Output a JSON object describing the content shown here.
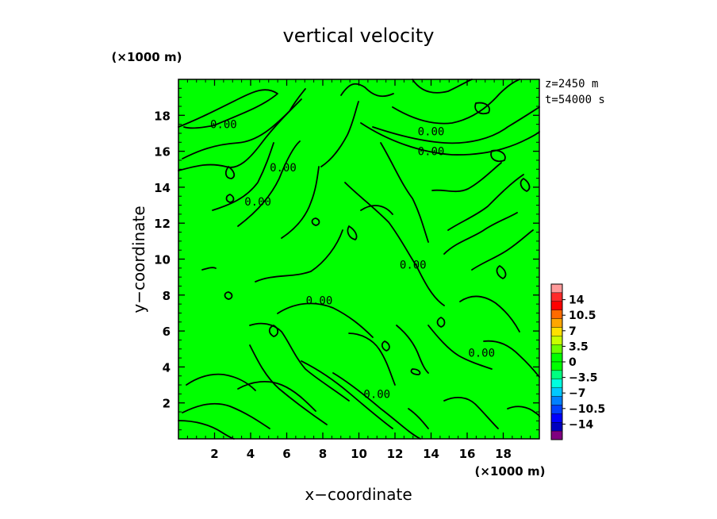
{
  "chart_data": {
    "type": "heatmap",
    "title": "vertical velocity",
    "xlabel": "x−coordinate",
    "ylabel": "y−coordinate",
    "x_unit": "(×1000 m)",
    "y_unit": "(×1000 m)",
    "xlim": [
      0,
      20
    ],
    "ylim": [
      0,
      20
    ],
    "x_ticks": [
      2,
      4,
      6,
      8,
      10,
      12,
      14,
      16,
      18
    ],
    "y_ticks": [
      2,
      4,
      6,
      8,
      10,
      12,
      14,
      16,
      18
    ],
    "x_tick_labels": [
      "2",
      "4",
      "6",
      "8",
      "10",
      "12",
      "14",
      "16",
      "18"
    ],
    "y_tick_labels": [
      "2",
      "4",
      "6",
      "8",
      "10",
      "12",
      "14",
      "16",
      "18"
    ],
    "info": [
      "z=2450 m",
      "t=54000 s"
    ],
    "contour_level": 0,
    "contour_labels": [
      {
        "text": "0.00",
        "x": 2.5,
        "y": 17.5
      },
      {
        "text": "0.00",
        "x": 14.0,
        "y": 17.1
      },
      {
        "text": "0.00",
        "x": 14.0,
        "y": 16.0
      },
      {
        "text": "0.00",
        "x": 5.8,
        "y": 15.1
      },
      {
        "text": "0.00",
        "x": 4.4,
        "y": 13.2
      },
      {
        "text": "0.00",
        "x": 13.0,
        "y": 9.7
      },
      {
        "text": "0.00",
        "x": 7.8,
        "y": 7.7
      },
      {
        "text": "0.00",
        "x": 16.8,
        "y": 4.8
      },
      {
        "text": "0.00",
        "x": 11.0,
        "y": 2.5
      }
    ],
    "colorbar": {
      "levels": [
        14,
        10.5,
        7,
        3.5,
        0,
        -3.5,
        -7,
        -10.5,
        -14
      ],
      "labels": [
        "14",
        "10.5",
        "7",
        "3.5",
        "0",
        "−3.5",
        "−7",
        "−10.5",
        "−14"
      ],
      "colors": [
        "#ff9a9a",
        "#ff2a2a",
        "#ff0000",
        "#ff6a00",
        "#ffa600",
        "#ffe000",
        "#c8ff00",
        "#6cff00",
        "#00ff00",
        "#00ff00",
        "#00ff80",
        "#00ffe0",
        "#00c8ff",
        "#0080ff",
        "#0040ff",
        "#0000ff",
        "#0000c0",
        "#800080"
      ]
    },
    "field_color": "#00ff00",
    "line_color": "#000000"
  }
}
